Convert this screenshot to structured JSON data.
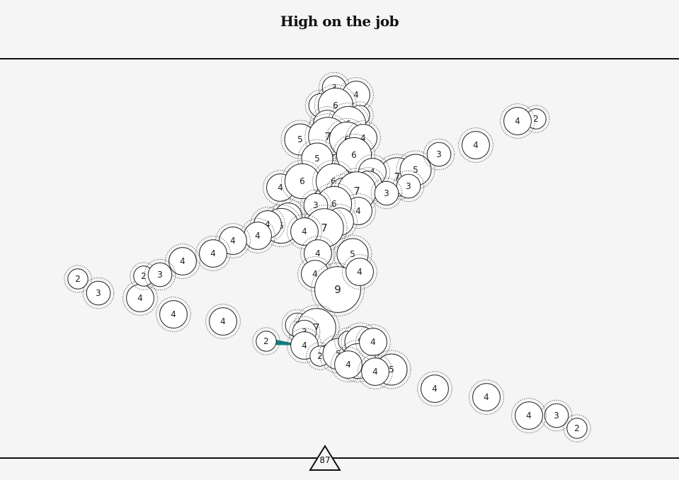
{
  "title": "High on the job",
  "score": "87",
  "colors": {
    "background": "#f6f5f6",
    "line": "#111111",
    "edge": "#0f7d82",
    "node_fill": "#ffffff"
  },
  "nodes": [
    {
      "id": "n1",
      "label": "3"
    },
    {
      "id": "n2",
      "label": "4"
    },
    {
      "id": "n3",
      "label": "3"
    },
    {
      "id": "n4",
      "label": "6"
    },
    {
      "id": "n5",
      "label": "2"
    },
    {
      "id": "n6",
      "label": "4"
    },
    {
      "id": "n7",
      "label": "6"
    },
    {
      "id": "n8",
      "label": "5"
    },
    {
      "id": "n9",
      "label": "7"
    },
    {
      "id": "n10",
      "label": "6"
    },
    {
      "id": "n11",
      "label": "4"
    },
    {
      "id": "n12",
      "label": "5"
    },
    {
      "id": "n13",
      "label": "6"
    },
    {
      "id": "n14",
      "label": "4"
    },
    {
      "id": "n15",
      "label": "7"
    },
    {
      "id": "n16",
      "label": "5"
    },
    {
      "id": "n17",
      "label": "4"
    },
    {
      "id": "n18",
      "label": "3"
    },
    {
      "id": "n19",
      "label": "4"
    },
    {
      "id": "n20",
      "label": "4"
    },
    {
      "id": "n21",
      "label": "3"
    },
    {
      "id": "n22",
      "label": "2"
    },
    {
      "id": "n23",
      "label": "4"
    },
    {
      "id": "n24",
      "label": "6"
    },
    {
      "id": "n25",
      "label": "6"
    },
    {
      "id": "n26",
      "label": "5"
    },
    {
      "id": "n27",
      "label": "7"
    },
    {
      "id": "n28",
      "label": "4"
    },
    {
      "id": "n29",
      "label": "3"
    },
    {
      "id": "n30",
      "label": "6"
    },
    {
      "id": "n31",
      "label": "4"
    },
    {
      "id": "n32",
      "label": "4"
    },
    {
      "id": "n33",
      "label": "3"
    },
    {
      "id": "n34",
      "label": "6"
    },
    {
      "id": "n35",
      "label": "4"
    },
    {
      "id": "n36",
      "label": "7"
    },
    {
      "id": "n37",
      "label": "4"
    },
    {
      "id": "n38",
      "label": "4"
    },
    {
      "id": "n39",
      "label": "4"
    },
    {
      "id": "n40",
      "label": "4"
    },
    {
      "id": "n41",
      "label": "4"
    },
    {
      "id": "n42",
      "label": "2"
    },
    {
      "id": "n43",
      "label": "3"
    },
    {
      "id": "n44",
      "label": "4"
    },
    {
      "id": "n45",
      "label": "2"
    },
    {
      "id": "n46",
      "label": "3"
    },
    {
      "id": "n47",
      "label": "4"
    },
    {
      "id": "n48",
      "label": "4"
    },
    {
      "id": "n49",
      "label": "4"
    },
    {
      "id": "n50",
      "label": "5"
    },
    {
      "id": "n51",
      "label": "4"
    },
    {
      "id": "n52",
      "label": "9"
    },
    {
      "id": "n53",
      "label": "3"
    },
    {
      "id": "n54",
      "label": "7"
    },
    {
      "id": "n55",
      "label": "3"
    },
    {
      "id": "n56",
      "label": "2"
    },
    {
      "id": "n57",
      "label": "4"
    },
    {
      "id": "n58",
      "label": "2"
    },
    {
      "id": "n59",
      "label": "5"
    },
    {
      "id": "n60",
      "label": "4"
    },
    {
      "id": "n61",
      "label": "2"
    },
    {
      "id": "n62",
      "label": "5"
    },
    {
      "id": "n63",
      "label": "6"
    },
    {
      "id": "n64",
      "label": "4"
    },
    {
      "id": "n65",
      "label": "4"
    },
    {
      "id": "n66",
      "label": "5"
    },
    {
      "id": "n67",
      "label": "4"
    },
    {
      "id": "n68",
      "label": "4"
    },
    {
      "id": "n69",
      "label": "4"
    },
    {
      "id": "n70",
      "label": "3"
    },
    {
      "id": "n71",
      "label": "2"
    }
  ],
  "edges": [
    {
      "from": "n56",
      "to": "n57"
    }
  ]
}
